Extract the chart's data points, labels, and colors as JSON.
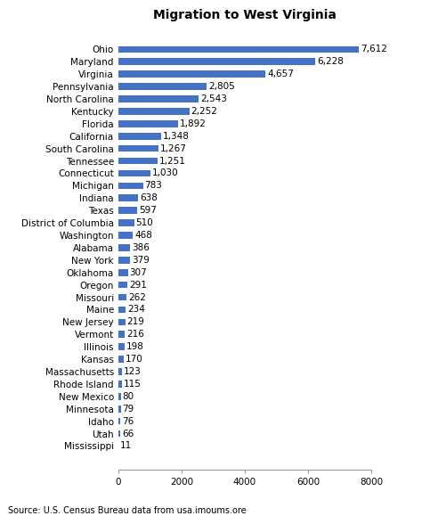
{
  "title": "Migration to West Virginia",
  "source": "Source: U.S. Census Bureau data from usa.imoums.ore",
  "categories": [
    "Mississippi",
    "Utah",
    "Idaho",
    "Minnesota",
    "New Mexico",
    "Rhode Island",
    "Massachusetts",
    "Kansas",
    "Illinois",
    "Vermont",
    "New Jersey",
    "Maine",
    "Missouri",
    "Oregon",
    "Oklahoma",
    "New York",
    "Alabama",
    "Washington",
    "District of Columbia",
    "Texas",
    "Indiana",
    "Michigan",
    "Connecticut",
    "Tennessee",
    "South Carolina",
    "California",
    "Florida",
    "Kentucky",
    "North Carolina",
    "Pennsylvania",
    "Virginia",
    "Maryland",
    "Ohio"
  ],
  "values": [
    11,
    66,
    76,
    79,
    80,
    115,
    123,
    170,
    198,
    216,
    219,
    234,
    262,
    291,
    307,
    379,
    386,
    468,
    510,
    597,
    638,
    783,
    1030,
    1251,
    1267,
    1348,
    1892,
    2252,
    2543,
    2805,
    4657,
    6228,
    7612
  ],
  "bar_color": "#4472c4",
  "xlim": [
    0,
    8000
  ],
  "xticks": [
    0,
    2000,
    4000,
    6000,
    8000
  ],
  "background_color": "#ffffff",
  "title_fontsize": 10,
  "label_fontsize": 7.5,
  "value_fontsize": 7.5,
  "source_fontsize": 7
}
